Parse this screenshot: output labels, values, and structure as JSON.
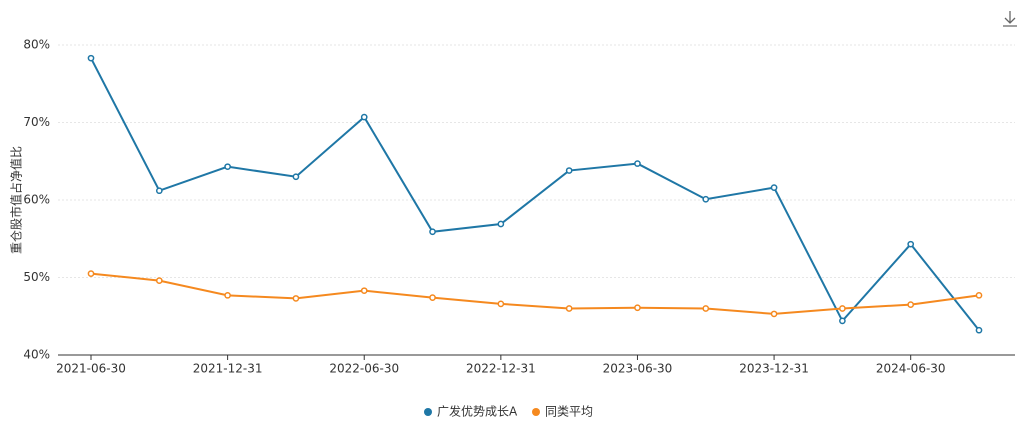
{
  "chart_data": {
    "type": "line",
    "y_label": "重仓股市值占净值比",
    "categories": [
      "2021-06-30",
      null,
      "2021-12-31",
      null,
      "2022-06-30",
      null,
      "2022-12-31",
      null,
      "2023-06-30",
      null,
      "2023-12-31",
      null,
      "2024-06-30",
      null
    ],
    "series": [
      {
        "name": "广发优势成长A",
        "color": "#1f77a6",
        "values": [
          78.3,
          61.2,
          64.3,
          63.0,
          70.7,
          55.9,
          56.9,
          63.8,
          64.7,
          60.1,
          61.6,
          44.4,
          54.3,
          43.2
        ]
      },
      {
        "name": "同类平均",
        "color": "#f5891f",
        "values": [
          50.5,
          49.6,
          47.7,
          47.3,
          48.3,
          47.4,
          46.6,
          46.0,
          46.1,
          46.0,
          45.3,
          46.0,
          46.5,
          47.7
        ]
      }
    ],
    "ylim": [
      40,
      80
    ],
    "yticks": [
      {
        "value": 40,
        "label": "40%"
      },
      {
        "value": 50,
        "label": "50%"
      },
      {
        "value": 60,
        "label": "60%"
      },
      {
        "value": 70,
        "label": "70%"
      },
      {
        "value": 80,
        "label": "80%"
      }
    ],
    "grid": true
  }
}
